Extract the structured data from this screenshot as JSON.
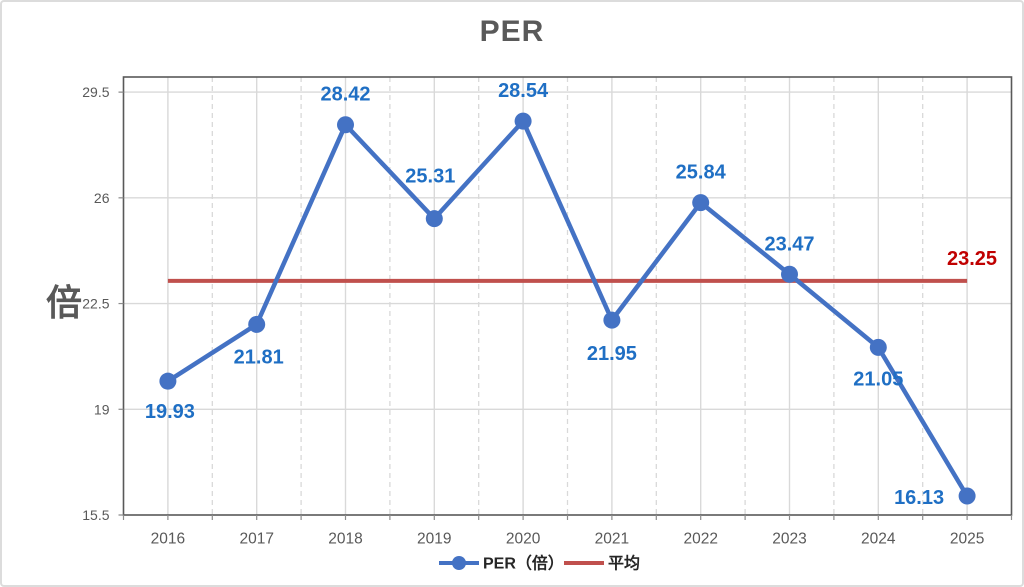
{
  "title": {
    "text": "PER",
    "color": "#595959"
  },
  "y_axis_title": {
    "text": "倍",
    "color": "#595959"
  },
  "colors": {
    "plot_border": "#595959",
    "grid": "#D9D9D9",
    "tick": "#8C8C8C",
    "axis_text": "#595959",
    "legend_text": "#262626",
    "background": "#FFFFFF",
    "frame_border": "#DCDCDC"
  },
  "chart_data": {
    "type": "line",
    "title": "PER",
    "ylabel": "倍",
    "categories": [
      "2016",
      "2017",
      "2018",
      "2019",
      "2020",
      "2021",
      "2022",
      "2023",
      "2024",
      "2025"
    ],
    "series": [
      {
        "name": "PER（倍）",
        "style": "line-with-markers",
        "color": "#4472C4",
        "values": [
          19.93,
          21.81,
          28.42,
          25.31,
          28.54,
          21.95,
          25.84,
          23.47,
          21.05,
          16.13
        ],
        "data_label_color": "#1F6FC4",
        "data_label_offsets": [
          [
            2,
            31
          ],
          [
            2,
            33
          ],
          [
            0,
            -30
          ],
          [
            -4,
            -42
          ],
          [
            0,
            -30
          ],
          [
            0,
            34
          ],
          [
            0,
            -30
          ],
          [
            0,
            -30
          ],
          [
            0,
            32
          ],
          [
            -48,
            2
          ]
        ]
      },
      {
        "name": "平均",
        "style": "line",
        "color": "#C0504D",
        "constant_value": 23.25,
        "data_label": "23.25",
        "data_label_color": "#C00000"
      }
    ],
    "y_axis": {
      "min": 15.5,
      "max": 30,
      "major_unit": 3.5,
      "ticks": [
        {
          "value": 29.5,
          "label": "29.5"
        },
        {
          "value": 26,
          "label": "26"
        },
        {
          "value": 22.5,
          "label": "22.5"
        },
        {
          "value": 19,
          "label": "19"
        },
        {
          "value": 15.5,
          "label": "15.5"
        }
      ]
    },
    "grid": {
      "horizontal": "solid-major",
      "vertical_major": "solid-at-category-centers",
      "vertical_minor": "dashed-at-category-boundaries"
    },
    "legend_position": "bottom"
  }
}
